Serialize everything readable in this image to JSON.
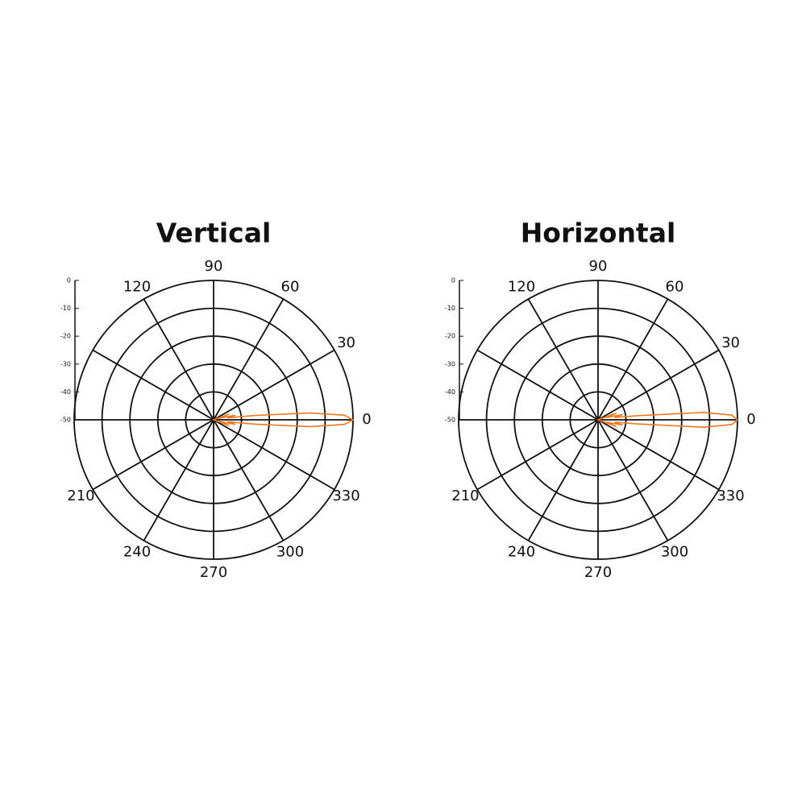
{
  "chart_data": [
    {
      "type": "polar",
      "title": "Vertical",
      "color": "#f07820",
      "rlim": [
        -50,
        0
      ],
      "rticks": [
        0,
        -10,
        -20,
        -30,
        -40,
        -50
      ],
      "thetaticks": [
        0,
        30,
        60,
        90,
        120,
        {
          "value": 150,
          "label": null
        },
        {
          "value": 180,
          "label": null
        },
        210,
        240,
        270,
        300,
        330
      ],
      "theta": [
        -180,
        -90,
        -30,
        -20,
        -16,
        -12,
        -8,
        -6,
        -4,
        -2,
        0,
        2,
        4,
        6,
        8,
        12,
        16,
        20,
        30,
        90,
        180
      ],
      "values": [
        -50,
        -50,
        -50,
        -44,
        -48,
        -42,
        -45,
        -35,
        -15,
        -3,
        0,
        -3,
        -15,
        -35,
        -45,
        -42,
        -48,
        -44,
        -50,
        -50,
        -50
      ]
    },
    {
      "type": "polar",
      "title": "Horizontal",
      "color": "#f07820",
      "rlim": [
        -50,
        0
      ],
      "rticks": [
        0,
        -10,
        -20,
        -30,
        -40,
        -50
      ],
      "thetaticks": [
        0,
        30,
        60,
        90,
        120,
        {
          "value": 150,
          "label": null
        },
        {
          "value": 180,
          "label": null
        },
        210,
        240,
        270,
        300,
        330
      ],
      "theta": [
        -180,
        -90,
        -30,
        -20,
        -16,
        -12,
        -8,
        -6,
        -4,
        -2,
        0,
        2,
        4,
        6,
        8,
        12,
        16,
        20,
        30,
        90,
        180
      ],
      "values": [
        -50,
        -50,
        -50,
        -43,
        -47,
        -41,
        -44,
        -36,
        -12,
        -2,
        0,
        -2,
        -12,
        -36,
        -44,
        -41,
        -47,
        -43,
        -50,
        -50,
        -50
      ]
    }
  ]
}
